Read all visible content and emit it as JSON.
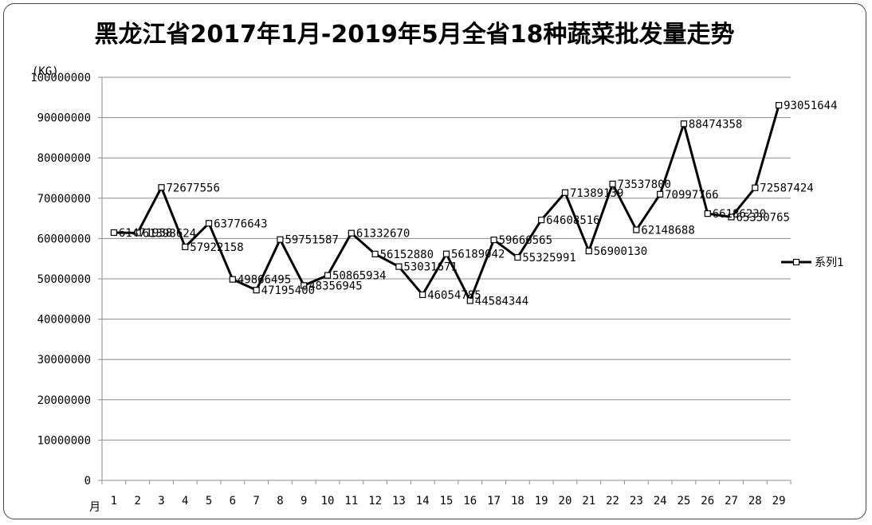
{
  "title": "黑龙江省2017年1月-2019年5月全省18种蔬菜批发量走势",
  "chart_data": {
    "type": "line",
    "title": "黑龙江省2017年1月-2019年5月全省18种蔬菜批发量走势",
    "ylabel": "(KG)",
    "xlabel": "月",
    "ylim": [
      0,
      100000000
    ],
    "yticks": [
      "0",
      "10000000",
      "20000000",
      "30000000",
      "40000000",
      "50000000",
      "60000000",
      "70000000",
      "80000000",
      "90000000",
      "100000000"
    ],
    "categories": [
      "1",
      "2",
      "3",
      "4",
      "5",
      "6",
      "7",
      "8",
      "9",
      "10",
      "11",
      "12",
      "13",
      "14",
      "15",
      "16",
      "17",
      "18",
      "19",
      "20",
      "21",
      "22",
      "23",
      "24",
      "25",
      "26",
      "27",
      "28",
      "29"
    ],
    "grid": true,
    "legend_position": "right",
    "series": [
      {
        "name": "系列1",
        "color": "#000000",
        "values": [
          61471938,
          61398624,
          72677556,
          57922158,
          63776643,
          49866495,
          47195400,
          59751587,
          48356945,
          50865934,
          61332670,
          56152880,
          53031671,
          46054785,
          56189042,
          44584344,
          59666565,
          55325991,
          64608516,
          71389139,
          56900130,
          73537800,
          62148688,
          70997766,
          88474358,
          66186230,
          65330765,
          72587424,
          93051644
        ],
        "labels": [
          "61471938",
          "61398624",
          "72677556",
          "57922158",
          "63776643",
          "49866495",
          "47195400",
          "59751587",
          "48356945",
          "50865934",
          "61332670",
          "56152880",
          "53031671",
          "46054785",
          "56189042",
          "44584344",
          "59666565",
          "55325991",
          "64608516",
          "71389139",
          "56900130",
          "73537800",
          "62148688",
          "70997766",
          "88474358",
          "66186230",
          "65330765",
          "72587424",
          "93051644"
        ]
      }
    ]
  }
}
